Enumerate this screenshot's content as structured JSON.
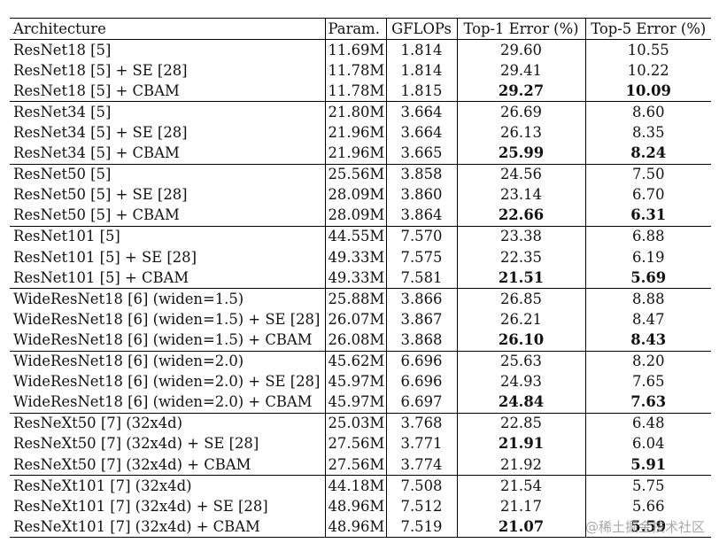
{
  "table": {
    "headers": [
      "Architecture",
      "Param.",
      "GFLOPs",
      "Top-1 Error (%)",
      "Top-5 Error (%)"
    ],
    "groups": [
      {
        "rows": [
          {
            "arch": "ResNet18 [5]",
            "param": "11.69M",
            "gflops": "1.814",
            "top1": "29.60",
            "top5": "10.55",
            "bold": false
          },
          {
            "arch": "ResNet18 [5] + SE [28]",
            "param": "11.78M",
            "gflops": "1.814",
            "top1": "29.41",
            "top5": "10.22",
            "bold": false
          },
          {
            "arch": "ResNet18 [5] + CBAM",
            "param": "11.78M",
            "gflops": "1.815",
            "top1": "29.27",
            "top5": "10.09",
            "bold": true
          }
        ]
      },
      {
        "rows": [
          {
            "arch": "ResNet34 [5]",
            "param": "21.80M",
            "gflops": "3.664",
            "top1": "26.69",
            "top5": "8.60",
            "bold": false
          },
          {
            "arch": "ResNet34 [5] + SE [28]",
            "param": "21.96M",
            "gflops": "3.664",
            "top1": "26.13",
            "top5": "8.35",
            "bold": false
          },
          {
            "arch": "ResNet34 [5] + CBAM",
            "param": "21.96M",
            "gflops": "3.665",
            "top1": "25.99",
            "top5": "8.24",
            "bold": true
          }
        ]
      },
      {
        "rows": [
          {
            "arch": "ResNet50 [5]",
            "param": "25.56M",
            "gflops": "3.858",
            "top1": "24.56",
            "top5": "7.50",
            "bold": false
          },
          {
            "arch": "ResNet50 [5] + SE [28]",
            "param": "28.09M",
            "gflops": "3.860",
            "top1": "23.14",
            "top5": "6.70",
            "bold": false
          },
          {
            "arch": "ResNet50 [5] + CBAM",
            "param": "28.09M",
            "gflops": "3.864",
            "top1": "22.66",
            "top5": "6.31",
            "bold": true
          }
        ]
      },
      {
        "rows": [
          {
            "arch": "ResNet101 [5]",
            "param": "44.55M",
            "gflops": "7.570",
            "top1": "23.38",
            "top5": "6.88",
            "bold": false
          },
          {
            "arch": "ResNet101 [5] + SE [28]",
            "param": "49.33M",
            "gflops": "7.575",
            "top1": "22.35",
            "top5": "6.19",
            "bold": false
          },
          {
            "arch": "ResNet101 [5] + CBAM",
            "param": "49.33M",
            "gflops": "7.581",
            "top1": "21.51",
            "top5": "5.69",
            "bold": true
          }
        ]
      },
      {
        "rows": [
          {
            "arch": "WideResNet18 [6] (widen=1.5)",
            "param": "25.88M",
            "gflops": "3.866",
            "top1": "26.85",
            "top5": "8.88",
            "bold": false
          },
          {
            "arch": "WideResNet18 [6] (widen=1.5) + SE [28]",
            "param": "26.07M",
            "gflops": "3.867",
            "top1": "26.21",
            "top5": "8.47",
            "bold": false
          },
          {
            "arch": "WideResNet18 [6] (widen=1.5) + CBAM",
            "param": "26.08M",
            "gflops": "3.868",
            "top1": "26.10",
            "top5": "8.43",
            "bold": true
          }
        ]
      },
      {
        "rows": [
          {
            "arch": "WideResNet18 [6] (widen=2.0)",
            "param": "45.62M",
            "gflops": "6.696",
            "top1": "25.63",
            "top5": "8.20",
            "bold": false
          },
          {
            "arch": "WideResNet18 [6] (widen=2.0) + SE [28]",
            "param": "45.97M",
            "gflops": "6.696",
            "top1": "24.93",
            "top5": "7.65",
            "bold": false
          },
          {
            "arch": "WideResNet18 [6] (widen=2.0) + CBAM",
            "param": "45.97M",
            "gflops": "6.697",
            "top1": "24.84",
            "top5": "7.63",
            "bold": true
          }
        ]
      },
      {
        "rows": [
          {
            "arch": "ResNeXt50 [7] (32x4d)",
            "param": "25.03M",
            "gflops": "3.768",
            "top1": "22.85",
            "top5": "6.48",
            "bold": false
          },
          {
            "arch": "ResNeXt50 [7] (32x4d) + SE [28]",
            "param": "27.56M",
            "gflops": "3.771",
            "top1": "21.91",
            "top5": "6.04",
            "bold": false
          },
          {
            "arch": "ResNeXt50 [7] (32x4d) + CBAM",
            "param": "27.56M",
            "gflops": "3.774",
            "top1": "21.92",
            "top5": "5.91",
            "bold": false
          }
        ]
      },
      {
        "rows": [
          {
            "arch": "ResNeXt101 [7] (32x4d)",
            "param": "44.18M",
            "gflops": "7.508",
            "top1": "21.54",
            "top5": "5.75",
            "bold": false
          },
          {
            "arch": "ResNeXt101 [7] (32x4d) + SE [28]",
            "param": "48.96M",
            "gflops": "7.512",
            "top1": "21.17",
            "top5": "5.66",
            "bold": false
          },
          {
            "arch": "ResNeXt101 [7] (32x4d) + CBAM",
            "param": "48.96M",
            "gflops": "7.519",
            "top1": "21.07",
            "top5": "5.59",
            "bold": true
          }
        ]
      }
    ],
    "bold_overrides": [
      {
        "group": 6,
        "row": 1,
        "col": "top1"
      },
      {
        "group": 6,
        "row": 2,
        "col": "top5"
      }
    ]
  },
  "watermark": "@稀土掘金技术社区"
}
